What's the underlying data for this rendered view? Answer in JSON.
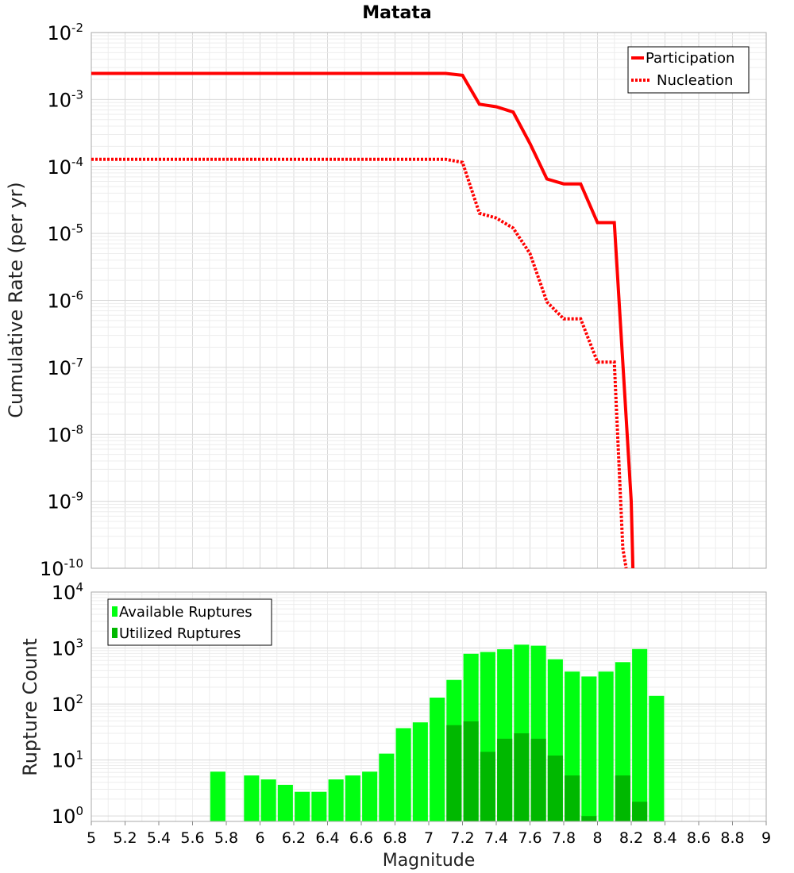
{
  "chart_data": [
    {
      "type": "line",
      "title": "Matata",
      "xlabel": "",
      "ylabel": "Cumulative Rate (per yr)",
      "yscale": "log",
      "xlim": [
        5,
        9
      ],
      "ylim": [
        1e-10,
        0.01
      ],
      "grid": true,
      "legend_position": "top-right",
      "ytick_labels": [
        {
          "base": "10",
          "exp": "-2"
        },
        {
          "base": "10",
          "exp": "-3"
        },
        {
          "base": "10",
          "exp": "-4"
        },
        {
          "base": "10",
          "exp": "-5"
        },
        {
          "base": "10",
          "exp": "-6"
        },
        {
          "base": "10",
          "exp": "-7"
        },
        {
          "base": "10",
          "exp": "-8"
        },
        {
          "base": "10",
          "exp": "-9"
        },
        {
          "base": "10",
          "exp": "-10"
        }
      ],
      "series": [
        {
          "name": "Participation",
          "color": "#ff0000",
          "style": "solid",
          "x": [
            5.0,
            7.1,
            7.2,
            7.3,
            7.4,
            7.5,
            7.6,
            7.7,
            7.8,
            7.9,
            8.0,
            8.1,
            8.2,
            8.21
          ],
          "y": [
            0.00245,
            0.00245,
            0.0023,
            0.00085,
            0.00078,
            0.00065,
            0.00022,
            6.5e-05,
            5.5e-05,
            5.5e-05,
            1.45e-05,
            1.45e-05,
            1e-09,
            1e-10
          ]
        },
        {
          "name": "Nucleation",
          "color": "#ff0000",
          "style": "dotted",
          "x": [
            5.0,
            7.1,
            7.2,
            7.3,
            7.4,
            7.5,
            7.6,
            7.7,
            7.8,
            7.9,
            8.0,
            8.1,
            8.15,
            8.17
          ],
          "y": [
            0.000128,
            0.000128,
            0.000115,
            2e-05,
            1.7e-05,
            1.2e-05,
            5e-06,
            9.5e-07,
            5.3e-07,
            5.3e-07,
            1.2e-07,
            1.2e-07,
            2e-10,
            1e-10
          ]
        }
      ]
    },
    {
      "type": "bar",
      "title": "",
      "xlabel": "Magnitude",
      "ylabel": "Rupture Count",
      "yscale": "log",
      "xlim": [
        5,
        9
      ],
      "ylim": [
        0.8,
        10000
      ],
      "bar_width": 0.09,
      "grid": true,
      "legend_position": "top-left",
      "xtick_labels": [
        "5",
        "5.2",
        "5.4",
        "5.6",
        "5.8",
        "6",
        "6.2",
        "6.4",
        "6.6",
        "6.8",
        "7",
        "7.2",
        "7.4",
        "7.6",
        "7.8",
        "8",
        "8.2",
        "8.4",
        "8.6",
        "8.8",
        "9"
      ],
      "ytick_labels": [
        {
          "base": "10",
          "exp": "4"
        },
        {
          "base": "10",
          "exp": "3"
        },
        {
          "base": "10",
          "exp": "2"
        },
        {
          "base": "10",
          "exp": "1"
        },
        {
          "base": "10",
          "exp": "0"
        }
      ],
      "series": [
        {
          "name": "Available Ruptures",
          "color": "#00ff11",
          "x": [
            5.75,
            5.95,
            6.05,
            6.15,
            6.25,
            6.35,
            6.45,
            6.55,
            6.65,
            6.75,
            6.85,
            6.95,
            7.05,
            7.15,
            7.25,
            7.35,
            7.45,
            7.55,
            7.65,
            7.75,
            7.85,
            7.95,
            8.05,
            8.15,
            8.25,
            8.35
          ],
          "values": [
            6.2,
            5.3,
            4.5,
            3.6,
            2.7,
            2.7,
            4.5,
            5.3,
            6.2,
            13,
            37,
            47,
            130,
            270,
            790,
            850,
            950,
            1150,
            1100,
            630,
            380,
            310,
            380,
            560,
            960,
            140
          ]
        },
        {
          "name": "Utilized Ruptures",
          "color": "#00b800",
          "x": [
            7.15,
            7.25,
            7.35,
            7.45,
            7.55,
            7.65,
            7.75,
            7.85,
            7.95,
            8.15,
            8.25
          ],
          "values": [
            42,
            49,
            14,
            24,
            30,
            24,
            12,
            5.3,
            1.0,
            5.3,
            1.8
          ]
        }
      ]
    }
  ]
}
